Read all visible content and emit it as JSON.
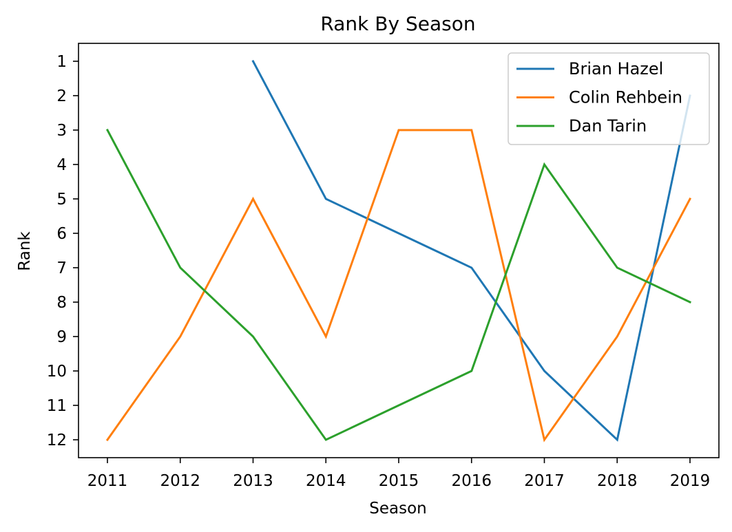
{
  "chart_data": {
    "type": "line",
    "title": "Rank By Season",
    "xlabel": "Season",
    "ylabel": "Rank",
    "x": [
      2011,
      2012,
      2013,
      2014,
      2015,
      2016,
      2017,
      2018,
      2019
    ],
    "x_tick_labels": [
      "2011",
      "2012",
      "2013",
      "2014",
      "2015",
      "2016",
      "2017",
      "2018",
      "2019"
    ],
    "y_ticks": [
      1,
      2,
      3,
      4,
      5,
      6,
      7,
      8,
      9,
      10,
      11,
      12
    ],
    "y_tick_labels": [
      "1",
      "2",
      "3",
      "4",
      "5",
      "6",
      "7",
      "8",
      "9",
      "10",
      "11",
      "12"
    ],
    "ylim": [
      12.52,
      0.48
    ],
    "y_inverted": true,
    "grid": false,
    "legend_position": "top-right",
    "series": [
      {
        "name": "Brian Hazel",
        "color": "#1f77b4",
        "values": [
          null,
          null,
          1,
          5,
          6,
          7,
          10,
          12,
          2
        ]
      },
      {
        "name": "Colin Rehbein",
        "color": "#ff7f0e",
        "values": [
          12,
          9,
          5,
          9,
          3,
          3,
          12,
          9,
          5
        ]
      },
      {
        "name": "Dan Tarin",
        "color": "#2ca02c",
        "values": [
          3,
          7,
          9,
          12,
          11,
          10,
          4,
          7,
          8
        ]
      }
    ]
  }
}
